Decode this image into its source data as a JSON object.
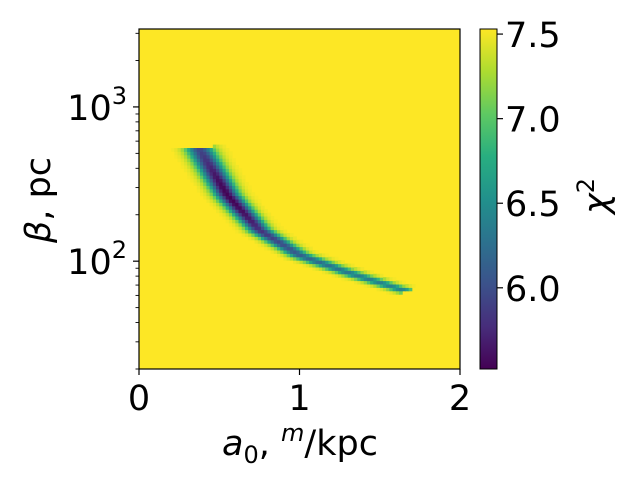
{
  "chart_data": {
    "type": "heatmap",
    "xlabel": "a0, m/kpc",
    "ylabel": "β, pc",
    "xlim": [
      0,
      2
    ],
    "ylim": [
      20,
      3200
    ],
    "yscale": "log",
    "x_ticks": [
      {
        "value": 0,
        "label": "0"
      },
      {
        "value": 1,
        "label": "1"
      },
      {
        "value": 2,
        "label": "2"
      }
    ],
    "y_ticks": [
      {
        "value": 100,
        "base": "10",
        "exp": "2"
      },
      {
        "value": 1000,
        "base": "10",
        "exp": "3"
      }
    ],
    "colorbar": {
      "label": "χ",
      "label_exp": "2",
      "colormap": "viridis",
      "range": [
        5.52,
        7.53
      ],
      "ticks": [
        {
          "value": 6.0,
          "label": "6.0"
        },
        {
          "value": 6.5,
          "label": "6.5"
        },
        {
          "value": 7.0,
          "label": "7.0"
        },
        {
          "value": 7.5,
          "label": "7.5"
        }
      ]
    },
    "background_value": 7.53,
    "valley": {
      "description_points": [
        {
          "a0": 0.38,
          "beta": 530
        },
        {
          "a0": 0.55,
          "beta": 270
        },
        {
          "a0": 0.75,
          "beta": 160
        },
        {
          "a0": 1.0,
          "beta": 110
        },
        {
          "a0": 1.3,
          "beta": 85
        },
        {
          "a0": 1.65,
          "beta": 65
        }
      ],
      "minimum": {
        "a0": 0.68,
        "beta": 180,
        "chi2": 5.52
      }
    }
  }
}
